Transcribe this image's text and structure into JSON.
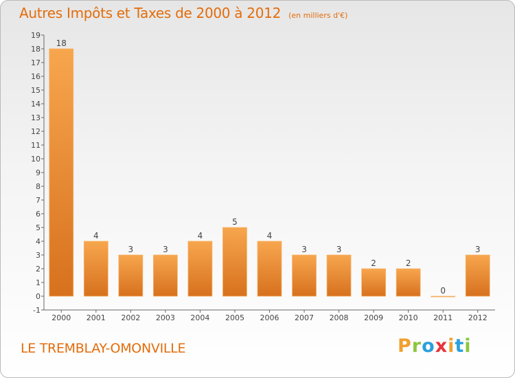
{
  "chart_data": {
    "type": "bar",
    "title": "Autres Impôts et Taxes de 2000 à 2012",
    "unit": "(en milliers d'€)",
    "categories": [
      "2000",
      "2001",
      "2002",
      "2003",
      "2004",
      "2005",
      "2006",
      "2007",
      "2008",
      "2009",
      "2010",
      "2011",
      "2012"
    ],
    "values": [
      18,
      4,
      3,
      3,
      4,
      5,
      4,
      3,
      3,
      2,
      2,
      0,
      3
    ],
    "data_labels": [
      "18",
      "4",
      "3",
      "3",
      "4",
      "5",
      "4",
      "3",
      "3",
      "2",
      "2",
      "0",
      "3"
    ],
    "ylim": [
      -1,
      19
    ],
    "y_ticks": [
      "-1",
      "0",
      "1",
      "2",
      "3",
      "4",
      "5",
      "6",
      "7",
      "8",
      "9",
      "10",
      "11",
      "12",
      "13",
      "14",
      "15",
      "16",
      "17",
      "18",
      "19"
    ],
    "grid": false,
    "bar_color": "#f39c42"
  },
  "footer": {
    "commune": "LE TREMBLAY-OMONVILLE",
    "brand_letters": [
      "P",
      "r",
      "o",
      "x",
      "i",
      "t",
      "i"
    ],
    "brand_colors": [
      "#f0a030",
      "#8cc63f",
      "#2aa0dc",
      "#e8343a",
      "#f0a030",
      "#2aa0dc",
      "#8cc63f"
    ]
  }
}
